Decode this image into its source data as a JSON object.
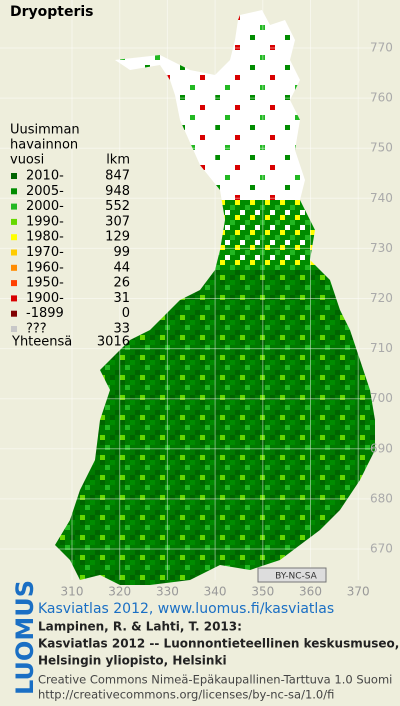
{
  "title": "Dryopteris",
  "legend": {
    "heading": [
      "Uusimman",
      "havainnon",
      "vuosi"
    ],
    "count_heading": "lkm",
    "items": [
      {
        "label": "2010-",
        "count": 847,
        "color": "#006400"
      },
      {
        "label": "2005-",
        "count": 948,
        "color": "#008c00"
      },
      {
        "label": "2000-",
        "count": 552,
        "color": "#22b822"
      },
      {
        "label": "1990-",
        "count": 307,
        "color": "#66d800"
      },
      {
        "label": "1980-",
        "count": 129,
        "color": "#ffff00"
      },
      {
        "label": "1970-",
        "count": 99,
        "color": "#ffcc00"
      },
      {
        "label": "1960-",
        "count": 44,
        "color": "#ff8c00"
      },
      {
        "label": "1950-",
        "count": 26,
        "color": "#ff4000"
      },
      {
        "label": "1900-",
        "count": 31,
        "color": "#d80000"
      },
      {
        "label": "-1899",
        "count": 0,
        "color": "#800000"
      },
      {
        "label": "???",
        "count": 33,
        "color": "#c8c8c8"
      }
    ],
    "total_label": "Yhteensä",
    "total": 3016
  },
  "map": {
    "xticks": [
      310,
      320,
      330,
      340,
      350,
      360,
      370
    ],
    "yticks": [
      770,
      760,
      750,
      740,
      730,
      720,
      710,
      700,
      690,
      680,
      670
    ],
    "license_badge": "BY-NC-SA"
  },
  "footer": {
    "brand": "LUOMUS",
    "headline": "Kasviatlas 2012, www.luomus.fi/kasviatlas",
    "citation": [
      "Lampinen, R. & Lahti, T. 2013:",
      "Kasviatlas 2012 -- Luonnontieteellinen keskusmuseo,",
      "Helsingin yliopisto, Helsinki"
    ],
    "license": [
      "Creative Commons Nimeä-Epäkaupallinen-Tarttuva 1.0 Suomi",
      "http://creativecommons.org/licenses/by-nc-sa/1.0/fi"
    ]
  }
}
